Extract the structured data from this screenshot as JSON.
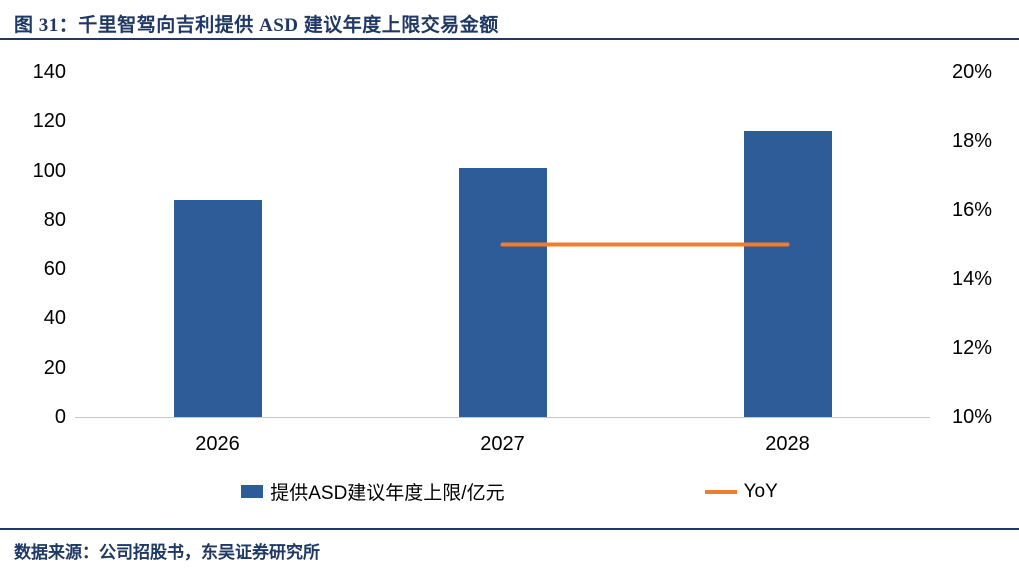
{
  "colors": {
    "bar_series": "#2E5C99",
    "line_series": "#ED7D31",
    "accent_navy": "#1F3864",
    "axis_line": "#C6C6C6"
  },
  "footer": {
    "source": "数据来源：公司招股书，东吴证券研究所"
  },
  "chart_data": {
    "type": "bar+line",
    "title": "图 31：千里智驾向吉利提供 ASD 建议年度上限交易金额",
    "categories": [
      "2026",
      "2027",
      "2028"
    ],
    "series": [
      {
        "name": "提供ASD建议年度上限/亿元",
        "type": "bar",
        "axis": "left",
        "values": [
          88,
          101,
          116
        ]
      },
      {
        "name": "YoY",
        "type": "line",
        "axis": "right",
        "values": [
          null,
          15,
          15
        ],
        "unit": "%"
      }
    ],
    "left_axis": {
      "min": 0,
      "max": 140,
      "ticks": [
        0,
        20,
        40,
        60,
        80,
        100,
        120,
        140
      ]
    },
    "right_axis": {
      "min": 10,
      "max": 20,
      "ticks": [
        "10%",
        "12%",
        "14%",
        "16%",
        "18%",
        "20%"
      ]
    },
    "legend_position": "bottom",
    "grid": false
  }
}
